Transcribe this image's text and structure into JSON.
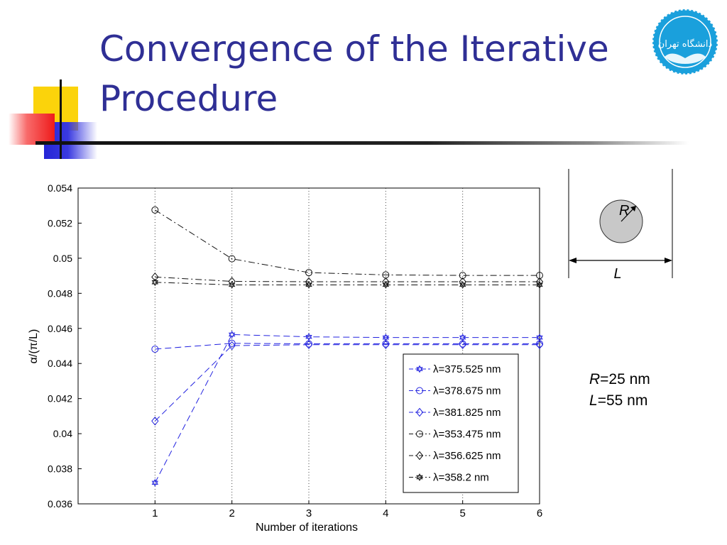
{
  "slide": {
    "title": "Convergence of the Iterative Procedure"
  },
  "logo": {
    "name": "university-of-tehran-logo",
    "text": "دانشگاه تهران",
    "color": "#1aa0dc"
  },
  "diagram": {
    "radius_label": "R",
    "period_label": "L"
  },
  "params": [
    {
      "symbol": "R",
      "value": "=25 nm"
    },
    {
      "symbol": "L",
      "value": "=55 nm"
    }
  ],
  "chart_data": {
    "type": "line",
    "xlabel": "Number of iterations",
    "ylabel": "α/(π/L)",
    "x": [
      1,
      2,
      3,
      4,
      5,
      6
    ],
    "xlim": [
      0.0,
      6.0
    ],
    "ylim": [
      0.036,
      0.054
    ],
    "x_ticks": [
      1,
      2,
      3,
      4,
      5,
      6
    ],
    "y_ticks": [
      "0.036",
      "0.038",
      "0.04",
      "0.042",
      "0.044",
      "0.046",
      "0.048",
      "0.05",
      "0.052",
      "0.054"
    ],
    "grid": "vertical dotted",
    "legend_position": "lower-right",
    "series": [
      {
        "name": "λ=375.525 nm",
        "color": "#2323e0",
        "marker": "star",
        "dash": "dashed",
        "values": [
          0.0372,
          0.04565,
          0.04552,
          0.04548,
          0.04548,
          0.04548
        ]
      },
      {
        "name": "λ=378.675 nm",
        "color": "#2323e0",
        "marker": "circle",
        "dash": "dashed",
        "values": [
          0.04482,
          0.04515,
          0.04512,
          0.04512,
          0.04512,
          0.04512
        ]
      },
      {
        "name": "λ=381.825 nm",
        "color": "#2323e0",
        "marker": "diamond",
        "dash": "dashed",
        "values": [
          0.04072,
          0.04502,
          0.04507,
          0.04507,
          0.04507,
          0.04507
        ]
      },
      {
        "name": "λ=353.475 nm",
        "color": "#111111",
        "marker": "circle",
        "dash": "dashdot",
        "values": [
          0.05275,
          0.04997,
          0.04918,
          0.04905,
          0.04902,
          0.04902
        ]
      },
      {
        "name": "λ=356.625 nm",
        "color": "#111111",
        "marker": "diamond",
        "dash": "dashdot",
        "values": [
          0.04893,
          0.04868,
          0.04866,
          0.04866,
          0.04866,
          0.04866
        ]
      },
      {
        "name": "λ=358.2 nm",
        "color": "#111111",
        "marker": "star",
        "dash": "dashdot",
        "values": [
          0.04863,
          0.04848,
          0.04848,
          0.04848,
          0.04848,
          0.04848
        ]
      }
    ]
  }
}
